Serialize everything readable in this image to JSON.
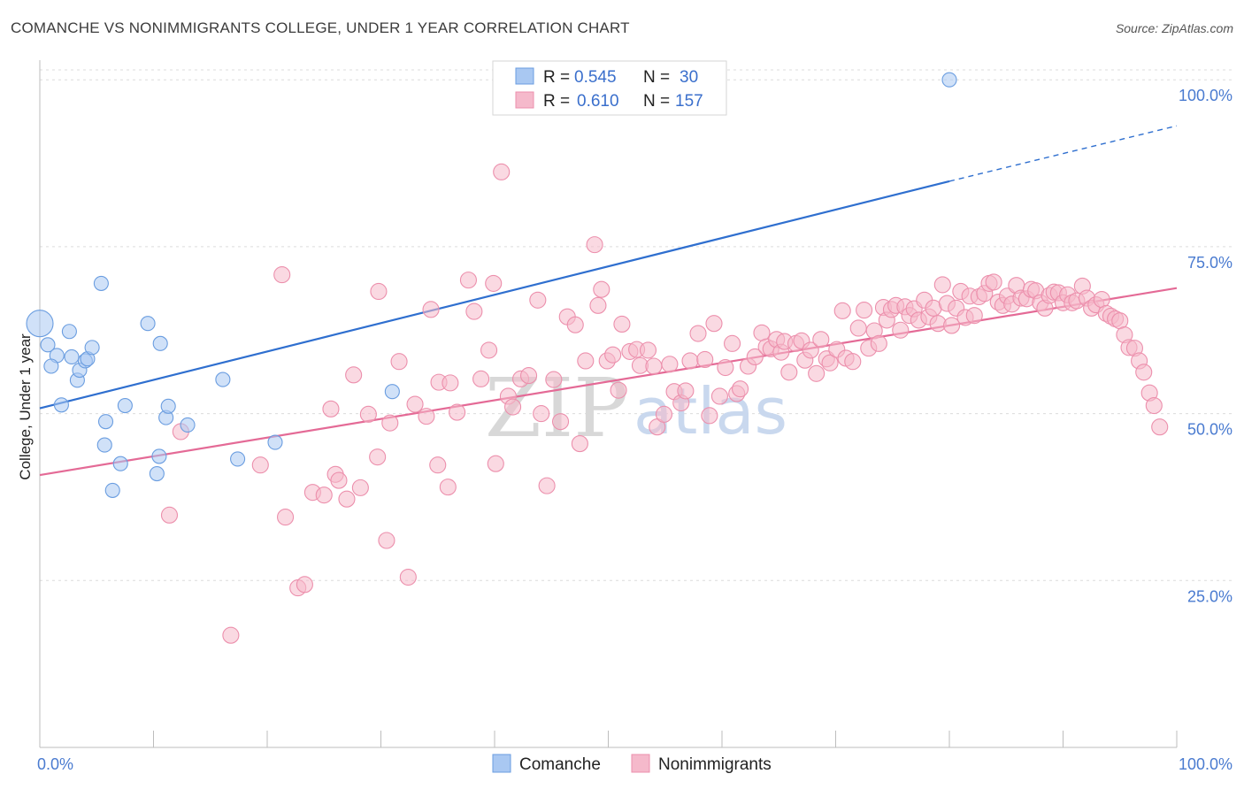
{
  "title": "COMANCHE VS NONIMMIGRANTS COLLEGE, UNDER 1 YEAR CORRELATION CHART",
  "source": "Source: ZipAtlas.com",
  "watermark": {
    "zip": "ZIP",
    "atlas": "atlas"
  },
  "legend": {
    "r_label": "R =",
    "n_label": "N =",
    "entries": [
      {
        "name": "Comanche",
        "r": "0.545",
        "n": "30",
        "color": "#a9c8f2"
      },
      {
        "name": "Nonimmigrants",
        "r": "0.610",
        "n": "157",
        "color": "#f5b9cb"
      }
    ]
  },
  "chart_data": {
    "type": "scatter",
    "title": "COMANCHE VS NONIMMIGRANTS COLLEGE, UNDER 1 YEAR CORRELATION CHART",
    "xlabel": "",
    "ylabel": "College, Under 1 year",
    "xlim": [
      0,
      100
    ],
    "ylim": [
      0,
      104
    ],
    "x_tick_labels": [
      "0.0%",
      "100.0%"
    ],
    "y_ticks": [
      25,
      50,
      75,
      100
    ],
    "y_tick_labels": [
      "25.0%",
      "50.0%",
      "75.0%",
      "100.0%"
    ],
    "grid": true,
    "series": [
      {
        "name": "Comanche",
        "color": "#6a9de0",
        "fill": "#a9c8f2",
        "trend": {
          "x0": 0,
          "y0": 50.8,
          "x1": 80,
          "y1": 84.8,
          "dash_to_x": 100,
          "dash_to_y": 93.1,
          "color": "#2f6fcf"
        },
        "points": [
          [
            0,
            63.5
          ],
          [
            0.7,
            60.3
          ],
          [
            1.5,
            58.7
          ],
          [
            2.6,
            62.3
          ],
          [
            1.0,
            57.1
          ],
          [
            2.8,
            58.5
          ],
          [
            3.3,
            55.0
          ],
          [
            3.5,
            56.5
          ],
          [
            4.0,
            57.9
          ],
          [
            4.2,
            58.2
          ],
          [
            4.6,
            59.9
          ],
          [
            5.4,
            69.5
          ],
          [
            1.9,
            51.3
          ],
          [
            5.8,
            48.8
          ],
          [
            5.7,
            45.3
          ],
          [
            7.5,
            51.2
          ],
          [
            7.1,
            42.5
          ],
          [
            6.4,
            38.5
          ],
          [
            9.5,
            63.5
          ],
          [
            10.6,
            60.5
          ],
          [
            11.1,
            49.4
          ],
          [
            11.3,
            51.1
          ],
          [
            10.3,
            41.0
          ],
          [
            10.5,
            43.6
          ],
          [
            13.0,
            48.3
          ],
          [
            16.1,
            55.1
          ],
          [
            17.4,
            43.2
          ],
          [
            20.7,
            45.7
          ],
          [
            31.0,
            53.3
          ],
          [
            80.0,
            100.0
          ]
        ],
        "sizes": [
          30,
          18,
          18,
          18,
          18,
          18,
          18,
          18,
          18,
          18,
          18,
          18,
          18,
          18,
          18,
          18,
          18,
          18,
          18,
          18,
          18,
          18,
          18,
          18,
          18,
          18,
          18,
          18,
          18,
          18
        ]
      },
      {
        "name": "Nonimmigrants",
        "color": "#ec8fac",
        "fill": "#f5b9cb",
        "trend": {
          "x0": 0,
          "y0": 40.8,
          "x1": 100,
          "y1": 68.8,
          "color": "#e46a96"
        },
        "points": [
          [
            11.4,
            34.8
          ],
          [
            12.4,
            47.3
          ],
          [
            16.8,
            16.8
          ],
          [
            19.4,
            42.3
          ],
          [
            21.3,
            70.8
          ],
          [
            21.6,
            34.5
          ],
          [
            22.7,
            23.9
          ],
          [
            23.3,
            24.4
          ],
          [
            24.0,
            38.2
          ],
          [
            25.0,
            37.8
          ],
          [
            25.6,
            50.7
          ],
          [
            26.0,
            40.9
          ],
          [
            26.3,
            40.0
          ],
          [
            27.0,
            37.2
          ],
          [
            27.6,
            55.8
          ],
          [
            28.2,
            38.9
          ],
          [
            28.9,
            49.9
          ],
          [
            29.7,
            43.5
          ],
          [
            29.8,
            68.3
          ],
          [
            30.5,
            31.0
          ],
          [
            30.8,
            48.6
          ],
          [
            31.6,
            57.8
          ],
          [
            32.4,
            25.5
          ],
          [
            33.0,
            51.4
          ],
          [
            34.0,
            49.6
          ],
          [
            34.4,
            65.6
          ],
          [
            35.0,
            42.3
          ],
          [
            35.1,
            54.7
          ],
          [
            36.1,
            54.6
          ],
          [
            35.9,
            39.0
          ],
          [
            36.7,
            50.2
          ],
          [
            37.7,
            70.0
          ],
          [
            38.2,
            65.3
          ],
          [
            38.8,
            55.2
          ],
          [
            39.5,
            59.5
          ],
          [
            39.9,
            69.5
          ],
          [
            40.1,
            42.5
          ],
          [
            40.6,
            86.2
          ],
          [
            41.2,
            52.6
          ],
          [
            41.6,
            51.0
          ],
          [
            42.3,
            55.2
          ],
          [
            43.0,
            55.7
          ],
          [
            43.8,
            67.0
          ],
          [
            44.1,
            50.0
          ],
          [
            44.6,
            39.2
          ],
          [
            45.2,
            55.1
          ],
          [
            45.8,
            48.8
          ],
          [
            46.4,
            64.5
          ],
          [
            47.1,
            63.3
          ],
          [
            47.5,
            45.5
          ],
          [
            48.0,
            57.9
          ],
          [
            48.8,
            75.3
          ],
          [
            49.1,
            66.2
          ],
          [
            49.4,
            68.6
          ],
          [
            49.9,
            57.9
          ],
          [
            50.4,
            58.8
          ],
          [
            50.9,
            53.5
          ],
          [
            51.2,
            63.4
          ],
          [
            51.9,
            59.3
          ],
          [
            52.5,
            59.6
          ],
          [
            52.8,
            57.2
          ],
          [
            53.5,
            59.5
          ],
          [
            54.0,
            57.1
          ],
          [
            54.3,
            48.0
          ],
          [
            54.9,
            49.9
          ],
          [
            55.4,
            57.4
          ],
          [
            55.8,
            53.3
          ],
          [
            56.4,
            51.6
          ],
          [
            56.8,
            53.4
          ],
          [
            57.2,
            57.9
          ],
          [
            57.9,
            62.0
          ],
          [
            58.5,
            58.1
          ],
          [
            58.9,
            49.7
          ],
          [
            59.3,
            63.5
          ],
          [
            59.8,
            52.6
          ],
          [
            60.3,
            56.9
          ],
          [
            60.9,
            60.5
          ],
          [
            61.3,
            53.0
          ],
          [
            61.6,
            53.7
          ],
          [
            62.3,
            57.1
          ],
          [
            62.9,
            58.5
          ],
          [
            63.5,
            62.1
          ],
          [
            63.9,
            60.0
          ],
          [
            64.3,
            59.7
          ],
          [
            64.8,
            61.1
          ],
          [
            65.2,
            59.2
          ],
          [
            65.5,
            60.8
          ],
          [
            65.9,
            56.2
          ],
          [
            66.5,
            60.5
          ],
          [
            67.0,
            60.9
          ],
          [
            67.3,
            58.0
          ],
          [
            67.8,
            59.5
          ],
          [
            68.3,
            56.0
          ],
          [
            68.7,
            61.1
          ],
          [
            69.2,
            58.2
          ],
          [
            69.5,
            57.6
          ],
          [
            70.1,
            59.6
          ],
          [
            70.6,
            65.4
          ],
          [
            70.9,
            58.3
          ],
          [
            71.5,
            57.8
          ],
          [
            72.0,
            62.8
          ],
          [
            72.5,
            65.5
          ],
          [
            72.9,
            59.8
          ],
          [
            73.4,
            62.4
          ],
          [
            73.8,
            60.5
          ],
          [
            74.2,
            65.9
          ],
          [
            74.5,
            64.0
          ],
          [
            74.9,
            65.6
          ],
          [
            75.3,
            66.2
          ],
          [
            75.7,
            62.5
          ],
          [
            76.1,
            66.0
          ],
          [
            76.5,
            64.7
          ],
          [
            76.9,
            65.7
          ],
          [
            77.3,
            64.0
          ],
          [
            77.8,
            67.0
          ],
          [
            78.2,
            64.5
          ],
          [
            78.6,
            65.8
          ],
          [
            79.0,
            63.5
          ],
          [
            79.4,
            69.3
          ],
          [
            79.8,
            66.5
          ],
          [
            80.2,
            63.2
          ],
          [
            80.6,
            65.8
          ],
          [
            81.0,
            68.3
          ],
          [
            81.4,
            64.4
          ],
          [
            81.8,
            67.6
          ],
          [
            82.2,
            64.7
          ],
          [
            82.6,
            67.5
          ],
          [
            83.1,
            68.0
          ],
          [
            83.5,
            69.5
          ],
          [
            83.9,
            69.7
          ],
          [
            84.3,
            66.7
          ],
          [
            84.7,
            66.2
          ],
          [
            85.1,
            67.6
          ],
          [
            85.5,
            66.4
          ],
          [
            85.9,
            69.2
          ],
          [
            86.3,
            67.3
          ],
          [
            86.8,
            67.2
          ],
          [
            87.2,
            68.6
          ],
          [
            87.6,
            68.4
          ],
          [
            88.0,
            66.6
          ],
          [
            88.4,
            65.8
          ],
          [
            88.8,
            67.7
          ],
          [
            89.2,
            68.2
          ],
          [
            89.6,
            68.1
          ],
          [
            90.0,
            66.6
          ],
          [
            90.4,
            67.8
          ],
          [
            90.8,
            66.6
          ],
          [
            91.2,
            66.9
          ],
          [
            91.7,
            69.1
          ],
          [
            92.1,
            67.3
          ],
          [
            92.5,
            65.8
          ],
          [
            92.9,
            66.3
          ],
          [
            93.4,
            67.1
          ],
          [
            93.8,
            65.0
          ],
          [
            94.2,
            64.6
          ],
          [
            94.6,
            64.2
          ],
          [
            95.0,
            63.9
          ],
          [
            95.4,
            61.8
          ],
          [
            95.8,
            59.9
          ],
          [
            96.3,
            59.8
          ],
          [
            96.7,
            57.9
          ],
          [
            97.1,
            56.2
          ],
          [
            97.6,
            53.1
          ],
          [
            98.0,
            51.2
          ],
          [
            98.5,
            48.0
          ]
        ]
      }
    ]
  }
}
